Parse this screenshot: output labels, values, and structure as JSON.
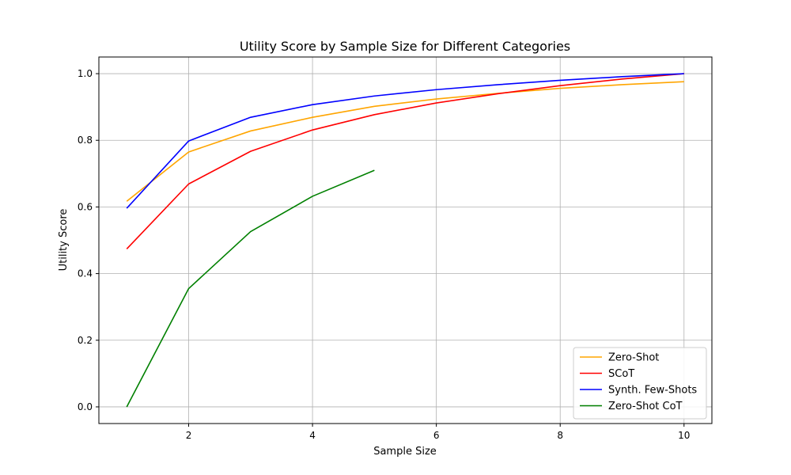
{
  "chart_data": {
    "type": "line",
    "title": "Utility Score by Sample Size for Different Categories",
    "xlabel": "Sample Size",
    "ylabel": "Utility Score",
    "xlim": [
      0.55,
      10.45
    ],
    "ylim": [
      -0.05,
      1.05
    ],
    "xticks": [
      2,
      4,
      6,
      8,
      10
    ],
    "yticks": [
      0.0,
      0.2,
      0.4,
      0.6,
      0.8,
      1.0
    ],
    "ytick_labels": [
      "0.0",
      "0.2",
      "0.4",
      "0.6",
      "0.8",
      "1.0"
    ],
    "grid": true,
    "legend_position": "lower-right",
    "series": [
      {
        "name": "Zero-Shot",
        "color": "#ffa500",
        "x": [
          1,
          2,
          3,
          4,
          5,
          6,
          7,
          8,
          9,
          10
        ],
        "y": [
          0.617,
          0.765,
          0.828,
          0.869,
          0.902,
          0.924,
          0.941,
          0.956,
          0.967,
          0.976
        ]
      },
      {
        "name": "SCoT",
        "color": "#ff0000",
        "x": [
          1,
          2,
          3,
          4,
          5,
          6,
          7,
          8,
          9,
          10
        ],
        "y": [
          0.474,
          0.669,
          0.767,
          0.831,
          0.877,
          0.912,
          0.94,
          0.964,
          0.984,
          1.0
        ]
      },
      {
        "name": "Synth. Few-Shots",
        "color": "#0000ff",
        "x": [
          1,
          2,
          3,
          4,
          5,
          6,
          7,
          8,
          9,
          10
        ],
        "y": [
          0.596,
          0.798,
          0.869,
          0.907,
          0.933,
          0.952,
          0.967,
          0.98,
          0.991,
          1.0
        ]
      },
      {
        "name": "Zero-Shot CoT",
        "color": "#008000",
        "x": [
          1,
          2,
          3,
          4,
          5
        ],
        "y": [
          0.0,
          0.355,
          0.526,
          0.632,
          0.71
        ]
      }
    ]
  }
}
